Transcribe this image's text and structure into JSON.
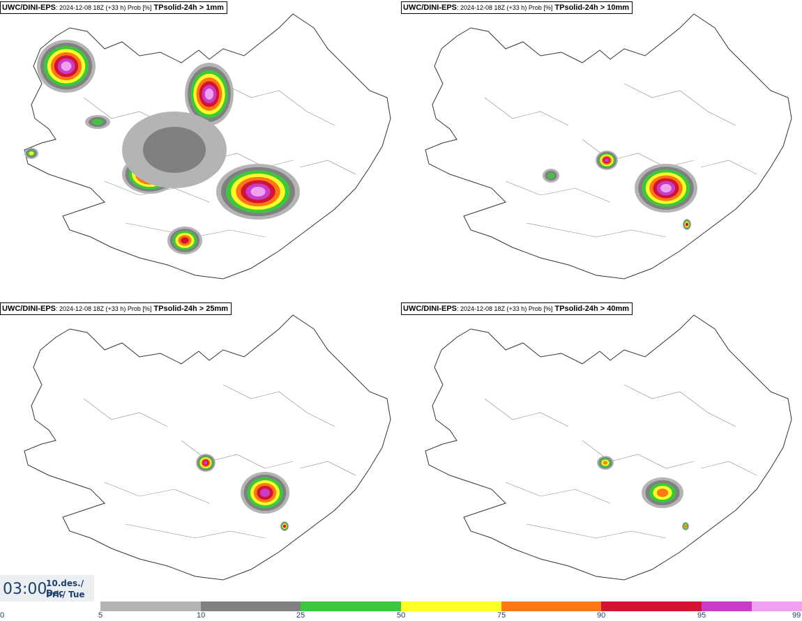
{
  "panels": [
    {
      "model": "UWC/DINI-EPS",
      "meta": ": 2024-12-08 18Z (+33 h) Prob [%]",
      "var": "TPsolid-24h > 1mm"
    },
    {
      "model": "UWC/DINI-EPS",
      "meta": ": 2024-12-08 18Z (+33 h) Prob [%]",
      "var": "TPsolid-24h > 10mm"
    },
    {
      "model": "UWC/DINI-EPS",
      "meta": ": 2024-12-08 18Z (+33 h) Prob [%]",
      "var": "TPsolid-24h > 25mm"
    },
    {
      "model": "UWC/DINI-EPS",
      "meta": ": 2024-12-08 18Z (+33 h) Prob [%]",
      "var": "TPsolid-24h > 40mm"
    }
  ],
  "valid_time": {
    "clock": "03:00",
    "date_line1": "10.des./ Dec",
    "date_line2": "Þri./ Tue"
  },
  "legend": {
    "ticks": [
      "0",
      "5",
      "10",
      "25",
      "50",
      "75",
      "90",
      "95",
      "99"
    ],
    "colors": [
      "#b4b4b4",
      "#808080",
      "#3cc83c",
      "#ffff28",
      "#ff7814",
      "#d21432",
      "#c83cc8",
      "#f0a0f0"
    ]
  },
  "colors": {
    "coast": "#333333",
    "gray_light": "#b4b4b4",
    "gray": "#808080",
    "green": "#3cc83c",
    "yellow": "#ffff28",
    "orange": "#ff7814",
    "red": "#d21432",
    "magenta": "#c83cc8",
    "pink": "#f0a0f0"
  }
}
